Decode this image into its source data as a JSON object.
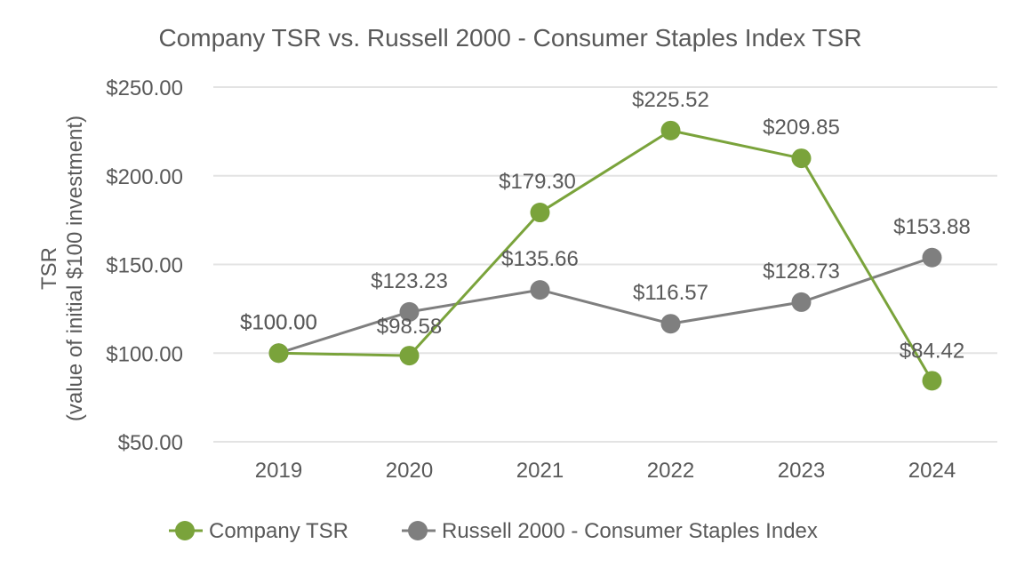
{
  "chart_data": {
    "type": "line",
    "title": "Company TSR vs. Russell 2000 - Consumer Staples Index TSR",
    "ylabel_line1": "TSR",
    "ylabel_line2": "(value of initial $100 investment)",
    "xlabel": "",
    "categories": [
      "2019",
      "2020",
      "2021",
      "2022",
      "2023",
      "2024"
    ],
    "ylim": [
      50,
      250
    ],
    "yticks": [
      50,
      100,
      150,
      200,
      250
    ],
    "ytick_labels": [
      "$50.00",
      "$100.00",
      "$150.00",
      "$200.00",
      "$250.00"
    ],
    "grid": true,
    "legend_position": "bottom",
    "series": [
      {
        "name": "Company TSR",
        "color": "#7aa33b",
        "values": [
          100.0,
          98.58,
          179.3,
          225.52,
          209.85,
          84.42
        ],
        "labels": [
          "$100.00",
          "$98.58",
          "$179.30",
          "$225.52",
          "$209.85",
          "$84.42"
        ]
      },
      {
        "name": "Russell 2000 - Consumer Staples Index",
        "color": "#7f7f7f",
        "values": [
          100.0,
          123.23,
          135.66,
          116.57,
          128.73,
          153.88
        ],
        "labels": [
          "$100.00",
          "$123.23",
          "$135.66",
          "$116.57",
          "$128.73",
          "$153.88"
        ]
      }
    ]
  }
}
